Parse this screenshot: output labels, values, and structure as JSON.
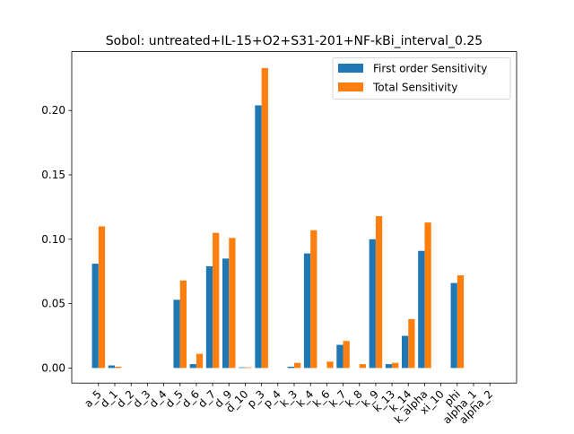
{
  "chart_data": {
    "type": "bar",
    "title": "Sobol: untreated+IL-15+O2+S31-201+NF-kBi_interval_0.25",
    "xlabel": "",
    "ylabel": "",
    "ylim": [
      -0.0117,
      0.2457
    ],
    "yticks": [
      0.0,
      0.05,
      0.1,
      0.15,
      0.2
    ],
    "ytick_labels": [
      "0.00",
      "0.05",
      "0.10",
      "0.15",
      "0.20"
    ],
    "grid": false,
    "legend_position": "upper right",
    "categories": [
      "a_5",
      "d_1",
      "d_2",
      "d_3",
      "d_4",
      "d_5",
      "d_6",
      "d_7",
      "d_9",
      "d_10",
      "p_3",
      "p_4",
      "k_3",
      "k_4",
      "k_6",
      "k_7",
      "k_8",
      "k_9",
      "k_13",
      "k_14",
      "k_alpha",
      "xi_10",
      "phi",
      "alpha_1",
      "alpha_2"
    ],
    "series": [
      {
        "name": "First order Sensitivity",
        "color": "#1f77b4",
        "values": [
          0.081,
          0.002,
          0.0,
          0.0,
          0.0,
          0.053,
          0.003,
          0.079,
          0.085,
          0.0005,
          0.204,
          0.0,
          0.001,
          0.089,
          0.0,
          0.018,
          0.0,
          0.1,
          0.003,
          0.025,
          0.091,
          0.0,
          0.066,
          0.0,
          0.0
        ]
      },
      {
        "name": "Total Sensitivity",
        "color": "#ff7f0e",
        "values": [
          0.11,
          0.001,
          0.0,
          0.0,
          0.0,
          0.068,
          0.011,
          0.105,
          0.101,
          0.0005,
          0.233,
          0.0,
          0.004,
          0.107,
          0.005,
          0.021,
          0.003,
          0.118,
          0.004,
          0.038,
          0.113,
          0.0,
          0.072,
          0.0,
          0.0
        ]
      }
    ]
  }
}
